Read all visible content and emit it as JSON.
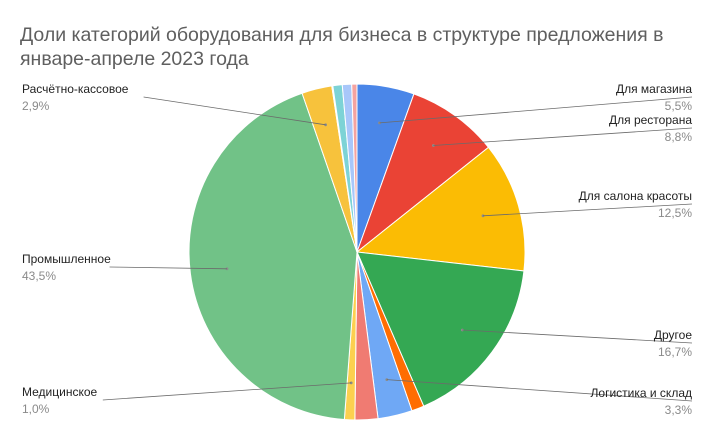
{
  "chart_data": {
    "type": "pie",
    "title_lines": [
      "Доли категорий оборудования для бизнеса в структуре предложения в",
      "январе-апреле 2023 года"
    ],
    "unit": "%",
    "slices": [
      {
        "label": "Для магазина",
        "value": 5.5,
        "display": "5,5%",
        "color": "#4a86e8",
        "labeled": true,
        "side": "right"
      },
      {
        "label": "Для ресторана",
        "value": 8.8,
        "display": "8,8%",
        "color": "#ea4335",
        "labeled": true,
        "side": "right"
      },
      {
        "label": "Для салона красоты",
        "value": 12.5,
        "display": "12,5%",
        "color": "#fbbc04",
        "labeled": true,
        "side": "right"
      },
      {
        "label": "Другое",
        "value": 16.7,
        "display": "16,7%",
        "color": "#34a853",
        "labeled": true,
        "side": "right"
      },
      {
        "label": "",
        "value": 1.2,
        "display": "",
        "color": "#ff6d01",
        "labeled": false
      },
      {
        "label": "Логистика и склад",
        "value": 3.3,
        "display": "3,3%",
        "color": "#6fa8f5",
        "labeled": true,
        "side": "right"
      },
      {
        "label": "",
        "value": 2.2,
        "display": "",
        "color": "#f07b72",
        "labeled": false
      },
      {
        "label": "Медицинское",
        "value": 1.0,
        "display": "1,0%",
        "color": "#fcd04f",
        "labeled": true,
        "side": "left"
      },
      {
        "label": "Промышленное",
        "value": 43.5,
        "display": "43,5%",
        "color": "#71c287",
        "labeled": true,
        "side": "left"
      },
      {
        "label": "Расчётно-кассовое",
        "value": 2.9,
        "display": "2,9%",
        "color": "#f7c23c",
        "labeled": true,
        "side": "left"
      },
      {
        "label": "",
        "value": 0.1,
        "display": "",
        "color": "#fdd663",
        "labeled": false
      },
      {
        "label": "",
        "value": 0.9,
        "display": "",
        "color": "#7dd3d6",
        "labeled": false
      },
      {
        "label": "",
        "value": 0.9,
        "display": "",
        "color": "#a8c7fa",
        "labeled": false
      },
      {
        "label": "",
        "value": 0.5,
        "display": "",
        "color": "#f4a3a0",
        "labeled": false
      }
    ]
  }
}
